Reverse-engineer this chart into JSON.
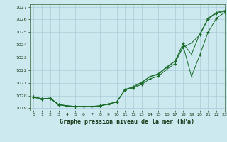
{
  "title": "Graphe pression niveau de la mer (hPa)",
  "bg_color": "#cce9f0",
  "grid_color": "#aacdd8",
  "line_color": "#1a6b2a",
  "xlim": [
    -0.5,
    23
  ],
  "ylim": [
    1018.8,
    1027.2
  ],
  "yticks": [
    1019,
    1020,
    1021,
    1022,
    1023,
    1024,
    1025,
    1026,
    1027
  ],
  "xticks": [
    0,
    1,
    2,
    3,
    4,
    5,
    6,
    7,
    8,
    9,
    10,
    11,
    12,
    13,
    14,
    15,
    16,
    17,
    18,
    19,
    20,
    21,
    22,
    23
  ],
  "line1_x": [
    0,
    1,
    2,
    3,
    4,
    5,
    6,
    7,
    8,
    9,
    10,
    11,
    12,
    13,
    14,
    15,
    16,
    17,
    18,
    19,
    20,
    21,
    22,
    23
  ],
  "line1_y": [
    1019.9,
    1019.75,
    1019.8,
    1019.3,
    1019.2,
    1019.15,
    1019.15,
    1019.15,
    1019.2,
    1019.35,
    1019.5,
    1020.5,
    1020.65,
    1021.0,
    1021.5,
    1021.65,
    1022.2,
    1022.7,
    1024.1,
    1023.25,
    1024.85,
    1026.1,
    1026.55,
    1026.7
  ],
  "line2_x": [
    0,
    1,
    2,
    3,
    4,
    5,
    6,
    7,
    8,
    9,
    10,
    11,
    12,
    13,
    14,
    15,
    16,
    17,
    18,
    19,
    20,
    21,
    22,
    23
  ],
  "line2_y": [
    1019.85,
    1019.72,
    1019.75,
    1019.27,
    1019.17,
    1019.12,
    1019.12,
    1019.12,
    1019.18,
    1019.32,
    1019.48,
    1020.45,
    1020.72,
    1021.05,
    1021.5,
    1021.72,
    1022.25,
    1022.72,
    1023.8,
    1024.15,
    1024.78,
    1026.05,
    1026.48,
    1026.65
  ],
  "line3_x": [
    0,
    1,
    2,
    3,
    4,
    5,
    6,
    7,
    8,
    9,
    10,
    11,
    12,
    13,
    14,
    15,
    16,
    17,
    18,
    19,
    20,
    21,
    22,
    23
  ],
  "line3_y": [
    1019.9,
    1019.75,
    1019.8,
    1019.3,
    1019.2,
    1019.15,
    1019.15,
    1019.15,
    1019.2,
    1019.35,
    1019.5,
    1020.45,
    1020.6,
    1020.88,
    1021.32,
    1021.52,
    1022.05,
    1022.52,
    1023.9,
    1021.5,
    1023.2,
    1025.0,
    1026.1,
    1026.55
  ]
}
